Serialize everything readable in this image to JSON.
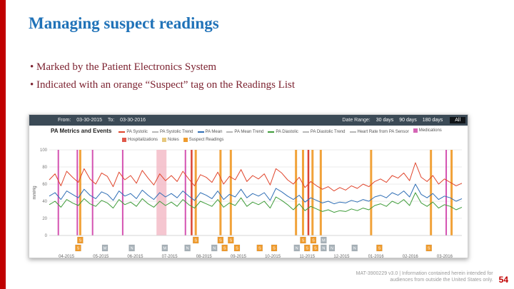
{
  "slide": {
    "title": "Managing suspect readings",
    "bullets": [
      "Marked by the Patient Electronics System",
      "Indicated with an orange “Suspect” tag on the Readings List"
    ],
    "footer_line1": "MAT-3900229 v3.0 | Information contained herein intended for",
    "footer_line2": "audiences from outside the United States only.",
    "page_number": "54",
    "accent_color": "#c00000",
    "title_color": "#1f72b8",
    "bullet_color": "#7c2230"
  },
  "app": {
    "header": {
      "from_label": "From:",
      "from_value": "03-30-2015",
      "to_label": "To:",
      "to_value": "03-30-2016",
      "date_range_label": "Date Range:",
      "range_options": [
        "30 days",
        "90 days",
        "180 days"
      ],
      "all_button": "All"
    },
    "section_title": "PA Metrics and Events",
    "legend_row1": [
      {
        "label": "PA Systolic",
        "color": "#e0452c",
        "type": "line"
      },
      {
        "label": "PA Systolic Trend",
        "color": "#b8b8b8",
        "type": "line"
      },
      {
        "label": "PA Mean",
        "color": "#2f6eb5",
        "type": "line"
      },
      {
        "label": "PA Mean Trend",
        "color": "#b8b8b8",
        "type": "line"
      },
      {
        "label": "PA Diastolic",
        "color": "#3f9c3a",
        "type": "line"
      },
      {
        "label": "PA Diastolic Trend",
        "color": "#b8b8b8",
        "type": "line"
      },
      {
        "label": "Heart Rate from PA Sensor",
        "color": "#b8b8b8",
        "type": "line"
      },
      {
        "label": "Medications",
        "color": "#d565b5",
        "type": "box"
      }
    ],
    "legend_row2": [
      {
        "label": "Hospitalizations",
        "color": "#e0584a",
        "type": "box"
      },
      {
        "label": "Notes",
        "color": "#e6c87e",
        "type": "box"
      },
      {
        "label": "Suspect Readings",
        "color": "#ef9b2d",
        "type": "box"
      }
    ]
  },
  "chart_data": {
    "type": "line",
    "title": "PA Metrics and Events",
    "ylabel": "mmHg",
    "ylim": [
      0,
      100
    ],
    "yticks": [
      0,
      20,
      40,
      60,
      80,
      100
    ],
    "grid": true,
    "x_labels": [
      "04-2015",
      "05-2015",
      "06-2015",
      "07-2015",
      "08-2015",
      "09-2015",
      "10-2015",
      "11-2015",
      "12-2015",
      "01-2016",
      "02-2016",
      "03-2016"
    ],
    "series": [
      {
        "name": "PA Systolic",
        "color": "#e0452c",
        "values": [
          65,
          72,
          58,
          75,
          68,
          62,
          78,
          66,
          60,
          73,
          69,
          57,
          74,
          65,
          70,
          61,
          76,
          67,
          59,
          72,
          64,
          70,
          63,
          75,
          66,
          58,
          71,
          68,
          62,
          74,
          60,
          69,
          65,
          77,
          63,
          70,
          66,
          72,
          59,
          78,
          73,
          65,
          60,
          68,
          56,
          63,
          58,
          54,
          57,
          52,
          56,
          53,
          58,
          55,
          60,
          57,
          63,
          66,
          62,
          70,
          67,
          73,
          64,
          85,
          68,
          63,
          70,
          60,
          66,
          62,
          58,
          61
        ]
      },
      {
        "name": "PA Mean",
        "color": "#2f6eb5",
        "values": [
          46,
          50,
          42,
          52,
          48,
          44,
          54,
          47,
          43,
          51,
          48,
          41,
          52,
          46,
          49,
          43,
          53,
          47,
          42,
          50,
          45,
          49,
          44,
          52,
          46,
          41,
          50,
          47,
          43,
          52,
          42,
          48,
          45,
          54,
          44,
          49,
          46,
          50,
          41,
          55,
          51,
          46,
          42,
          47,
          39,
          44,
          41,
          38,
          40,
          37,
          39,
          38,
          41,
          39,
          42,
          40,
          45,
          47,
          44,
          50,
          47,
          52,
          45,
          60,
          48,
          44,
          49,
          42,
          46,
          44,
          40,
          43
        ]
      },
      {
        "name": "PA Diastolic",
        "color": "#3f9c3a",
        "values": [
          36,
          40,
          33,
          42,
          38,
          35,
          43,
          37,
          34,
          41,
          38,
          32,
          42,
          36,
          39,
          34,
          43,
          37,
          33,
          40,
          35,
          39,
          34,
          42,
          36,
          32,
          40,
          37,
          34,
          42,
          33,
          38,
          35,
          44,
          34,
          39,
          36,
          40,
          32,
          45,
          41,
          36,
          30,
          37,
          29,
          34,
          31,
          28,
          30,
          27,
          29,
          28,
          31,
          29,
          32,
          30,
          35,
          37,
          34,
          40,
          37,
          42,
          35,
          50,
          38,
          34,
          39,
          32,
          36,
          34,
          30,
          33
        ]
      }
    ],
    "event_types": {
      "medication": {
        "color": "#cf3fa8",
        "width": 2,
        "opacity": 0.9
      },
      "hospitalization_band": {
        "color": "#f3bcc8",
        "width": 14,
        "opacity": 0.85
      },
      "hospitalization": {
        "color": "#d93a2b",
        "width": 2.5,
        "opacity": 0.95
      },
      "suspect": {
        "color": "#f09d2e",
        "width": 3,
        "opacity": 0.95
      }
    },
    "events": [
      {
        "pos": 0.022,
        "type": "medication"
      },
      {
        "pos": 0.068,
        "type": "medication"
      },
      {
        "pos": 0.075,
        "type": "suspect"
      },
      {
        "pos": 0.105,
        "type": "medication"
      },
      {
        "pos": 0.178,
        "type": "medication"
      },
      {
        "pos": 0.272,
        "type": "hospitalization_band"
      },
      {
        "pos": 0.33,
        "type": "medication"
      },
      {
        "pos": 0.345,
        "type": "hospitalization"
      },
      {
        "pos": 0.355,
        "type": "suspect"
      },
      {
        "pos": 0.415,
        "type": "suspect"
      },
      {
        "pos": 0.44,
        "type": "suspect"
      },
      {
        "pos": 0.598,
        "type": "suspect"
      },
      {
        "pos": 0.615,
        "type": "suspect"
      },
      {
        "pos": 0.628,
        "type": "hospitalization"
      },
      {
        "pos": 0.638,
        "type": "suspect"
      },
      {
        "pos": 0.658,
        "type": "suspect"
      },
      {
        "pos": 0.78,
        "type": "suspect"
      },
      {
        "pos": 0.925,
        "type": "suspect"
      },
      {
        "pos": 0.962,
        "type": "medication"
      },
      {
        "pos": 0.975,
        "type": "suspect"
      }
    ],
    "markers": [
      {
        "pos": 0.075,
        "row": 1,
        "letter": "S",
        "bg": "#ef9b2d",
        "fg": "#ffffff"
      },
      {
        "pos": 0.355,
        "row": 1,
        "letter": "S",
        "bg": "#ef9b2d",
        "fg": "#ffffff"
      },
      {
        "pos": 0.415,
        "row": 1,
        "letter": "S",
        "bg": "#ef9b2d",
        "fg": "#ffffff"
      },
      {
        "pos": 0.44,
        "row": 1,
        "letter": "S",
        "bg": "#ef9b2d",
        "fg": "#ffffff"
      },
      {
        "pos": 0.615,
        "row": 1,
        "letter": "S",
        "bg": "#ef9b2d",
        "fg": "#ffffff"
      },
      {
        "pos": 0.64,
        "row": 1,
        "letter": "S",
        "bg": "#ef9b2d",
        "fg": "#ffffff"
      },
      {
        "pos": 0.665,
        "row": 1,
        "letter": "M",
        "bg": "#a7b1b8",
        "fg": "#ffffff"
      },
      {
        "pos": 0.07,
        "row": 2,
        "letter": "S",
        "bg": "#ef9b2d",
        "fg": "#ffffff"
      },
      {
        "pos": 0.135,
        "row": 2,
        "letter": "M",
        "bg": "#a7b1b8",
        "fg": "#ffffff"
      },
      {
        "pos": 0.2,
        "row": 2,
        "letter": "N",
        "bg": "#a7b1b8",
        "fg": "#ffffff"
      },
      {
        "pos": 0.28,
        "row": 2,
        "letter": "M",
        "bg": "#a7b1b8",
        "fg": "#ffffff"
      },
      {
        "pos": 0.335,
        "row": 2,
        "letter": "N",
        "bg": "#a7b1b8",
        "fg": "#ffffff"
      },
      {
        "pos": 0.4,
        "row": 2,
        "letter": "N",
        "bg": "#a7b1b8",
        "fg": "#ffffff"
      },
      {
        "pos": 0.425,
        "row": 2,
        "letter": "S",
        "bg": "#ef9b2d",
        "fg": "#ffffff"
      },
      {
        "pos": 0.455,
        "row": 2,
        "letter": "S",
        "bg": "#ef9b2d",
        "fg": "#ffffff"
      },
      {
        "pos": 0.51,
        "row": 2,
        "letter": "S",
        "bg": "#ef9b2d",
        "fg": "#ffffff"
      },
      {
        "pos": 0.545,
        "row": 2,
        "letter": "S",
        "bg": "#ef9b2d",
        "fg": "#ffffff"
      },
      {
        "pos": 0.6,
        "row": 2,
        "letter": "N",
        "bg": "#a7b1b8",
        "fg": "#ffffff"
      },
      {
        "pos": 0.625,
        "row": 2,
        "letter": "S",
        "bg": "#ef9b2d",
        "fg": "#ffffff"
      },
      {
        "pos": 0.645,
        "row": 2,
        "letter": "S",
        "bg": "#ef9b2d",
        "fg": "#ffffff"
      },
      {
        "pos": 0.665,
        "row": 2,
        "letter": "N",
        "bg": "#a7b1b8",
        "fg": "#ffffff"
      },
      {
        "pos": 0.685,
        "row": 2,
        "letter": "N",
        "bg": "#a7b1b8",
        "fg": "#ffffff"
      },
      {
        "pos": 0.74,
        "row": 2,
        "letter": "N",
        "bg": "#a7b1b8",
        "fg": "#ffffff"
      },
      {
        "pos": 0.8,
        "row": 2,
        "letter": "S",
        "bg": "#ef9b2d",
        "fg": "#ffffff"
      },
      {
        "pos": 0.92,
        "row": 2,
        "letter": "S",
        "bg": "#ef9b2d",
        "fg": "#ffffff"
      }
    ]
  }
}
